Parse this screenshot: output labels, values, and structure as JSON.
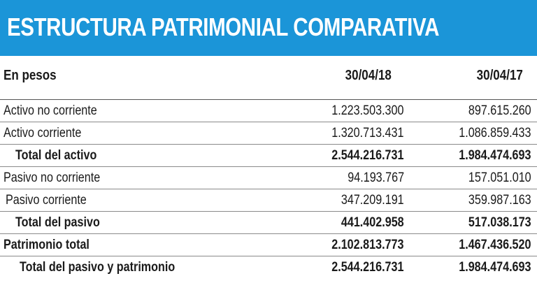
{
  "title": "ESTRUCTURA PATRIMONIAL COMPARATIVA",
  "colors": {
    "banner": "#1b95d8",
    "text": "#1a1a1a"
  },
  "table": {
    "header": {
      "label": "En pesos",
      "col1": "30/04/18",
      "col2": "30/04/17"
    },
    "rows": [
      {
        "label": "Activo no corriente",
        "v1": "1.223.503.300",
        "v2": "897.615.260"
      },
      {
        "label": "Activo corriente",
        "v1": "1.320.713.431",
        "v2": "1.086.859.433"
      },
      {
        "label": "Total del activo",
        "v1": "2.544.216.731",
        "v2": "1.984.474.693"
      },
      {
        "label": "Pasivo no corriente",
        "v1": "94.193.767",
        "v2": "157.051.010"
      },
      {
        "label": "Pasivo corriente",
        "v1": "347.209.191",
        "v2": "359.987.163"
      },
      {
        "label": "Total del pasivo",
        "v1": "441.402.958",
        "v2": "517.038.173"
      },
      {
        "label": "Patrimonio total",
        "v1": "2.102.813.773",
        "v2": "1.467.436.520"
      },
      {
        "label": "Total del pasivo y patrimonio",
        "v1": "2.544.216.731",
        "v2": "1.984.474.693"
      }
    ]
  }
}
